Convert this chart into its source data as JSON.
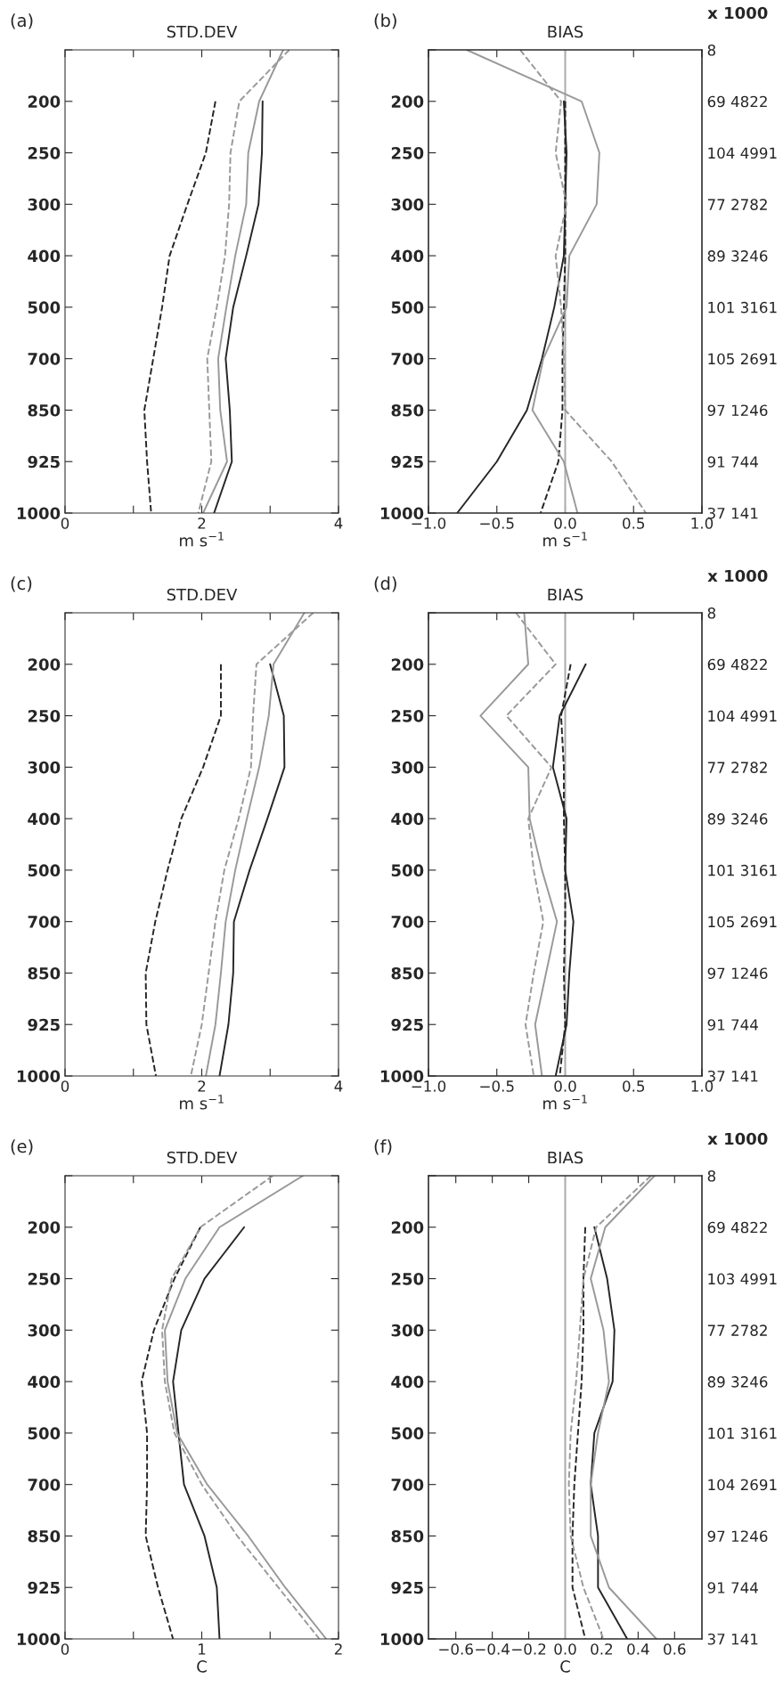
{
  "chart_data": [
    {
      "type": "line",
      "orientation": "horizontal",
      "title": "STD.DEV",
      "xlabel": "m s$^{−1}$",
      "annotations": [
        "(a)"
      ],
      "categories": [
        null,
        "200",
        "250",
        "300",
        "400",
        "500",
        "700",
        "850",
        "925",
        "1000"
      ],
      "xlim": [
        0,
        4
      ],
      "xticks": [
        0,
        {
          "value": 1,
          "label": null
        },
        2,
        {
          "value": 3,
          "label": null
        },
        4
      ],
      "grid": false,
      "series": [
        {
          "color": "#262626",
          "line_style": "solid",
          "values": [
            null,
            2.89,
            2.88,
            2.83,
            2.65,
            2.46,
            2.35,
            2.41,
            2.44,
            2.18
          ]
        },
        {
          "color": "#262626",
          "line_style": "dashed",
          "values": [
            null,
            2.2,
            2.06,
            1.79,
            1.53,
            1.42,
            1.29,
            1.16,
            1.2,
            1.26
          ]
        },
        {
          "color": "#999999",
          "line_style": "solid",
          "values": [
            3.19,
            2.84,
            2.68,
            2.65,
            2.49,
            2.36,
            2.24,
            2.27,
            2.37,
            2.02
          ]
        },
        {
          "color": "#999999",
          "line_style": "dashed",
          "values": [
            3.28,
            2.55,
            2.42,
            2.4,
            2.34,
            2.22,
            2.08,
            2.11,
            2.14,
            1.95
          ]
        }
      ]
    },
    {
      "type": "line",
      "orientation": "horizontal",
      "title": "BIAS",
      "xlabel": "m s$^{−1}$",
      "annotations": [
        "(b)",
        "x 1000"
      ],
      "categories": [
        null,
        "200",
        "250",
        "300",
        "400",
        "500",
        "700",
        "850",
        "925",
        "1000"
      ],
      "y2_categories": [
        "8",
        "69 4822",
        "104 4991",
        "77 2782",
        "89 3246",
        "101 3161",
        "105 2691",
        "97 1246",
        "91 744",
        "37 141"
      ],
      "xlim": [
        -1,
        1
      ],
      "xticks": [
        {
          "value": -1,
          "label": "−1.0"
        },
        {
          "value": -0.5,
          "label": "−0.5"
        },
        {
          "value": 0,
          "label": "0.0"
        },
        {
          "value": 0.5,
          "label": "0.5"
        },
        {
          "value": 1,
          "label": "1.0"
        }
      ],
      "grid": false,
      "ref_lines": [
        {
          "axis": "x",
          "value": 0,
          "color": "#aaaaaa"
        }
      ],
      "series": [
        {
          "color": "#262626",
          "line_style": "solid",
          "values": [
            null,
            -0.01,
            0.01,
            0,
            -0.01,
            -0.08,
            -0.17,
            -0.28,
            -0.5,
            -0.79
          ]
        },
        {
          "color": "#262626",
          "line_style": "dashed",
          "values": [
            null,
            0,
            0,
            0,
            0,
            -0.01,
            -0.02,
            -0.02,
            -0.05,
            -0.18
          ]
        },
        {
          "color": "#999999",
          "line_style": "solid",
          "values": [
            -0.72,
            0.12,
            0.25,
            0.23,
            0.03,
            0.01,
            -0.16,
            -0.24,
            -0.01,
            0.09
          ]
        },
        {
          "color": "#999999",
          "line_style": "dashed",
          "values": [
            -0.33,
            -0.03,
            -0.07,
            0.01,
            -0.07,
            -0.03,
            -0.01,
            0,
            0.34,
            0.59
          ]
        }
      ]
    },
    {
      "type": "line",
      "orientation": "horizontal",
      "title": "STD.DEV",
      "xlabel": "m s$^{−1}$",
      "annotations": [
        "(c)"
      ],
      "categories": [
        null,
        "200",
        "250",
        "300",
        "400",
        "500",
        "700",
        "850",
        "925",
        "1000"
      ],
      "xlim": [
        0,
        4
      ],
      "xticks": [
        0,
        {
          "value": 1,
          "label": null
        },
        2,
        {
          "value": 3,
          "label": null
        },
        4
      ],
      "grid": false,
      "series": [
        {
          "color": "#262626",
          "line_style": "solid",
          "values": [
            null,
            3.0,
            3.2,
            3.21,
            2.96,
            2.7,
            2.47,
            2.46,
            2.39,
            2.26
          ]
        },
        {
          "color": "#262626",
          "line_style": "dashed",
          "values": [
            null,
            2.28,
            2.28,
            2.02,
            1.7,
            1.5,
            1.32,
            1.18,
            1.19,
            1.33
          ]
        },
        {
          "color": "#999999",
          "line_style": "solid",
          "values": [
            3.5,
            3.05,
            2.98,
            2.84,
            2.66,
            2.49,
            2.35,
            2.28,
            2.2,
            2.06
          ]
        },
        {
          "color": "#999999",
          "line_style": "dashed",
          "values": [
            3.63,
            2.8,
            2.75,
            2.72,
            2.54,
            2.33,
            2.2,
            2.1,
            2.0,
            1.84
          ]
        }
      ]
    },
    {
      "type": "line",
      "orientation": "horizontal",
      "title": "BIAS",
      "xlabel": "m s$^{−1}$",
      "annotations": [
        "(d)",
        "x 1000"
      ],
      "categories": [
        null,
        "200",
        "250",
        "300",
        "400",
        "500",
        "700",
        "850",
        "925",
        "1000"
      ],
      "y2_categories": [
        "8",
        "69 4822",
        "104 4991",
        "77 2782",
        "89 3246",
        "101 3161",
        "105 2691",
        "97 1246",
        "91 744",
        "37 141"
      ],
      "xlim": [
        -1,
        1
      ],
      "xticks": [
        {
          "value": -1,
          "label": "−1.0"
        },
        {
          "value": -0.5,
          "label": "−0.5"
        },
        {
          "value": 0,
          "label": "0.0"
        },
        {
          "value": 0.5,
          "label": "0.5"
        },
        {
          "value": 1,
          "label": "1.0"
        }
      ],
      "grid": false,
      "ref_lines": [
        {
          "axis": "x",
          "value": 0,
          "color": "#aaaaaa"
        }
      ],
      "series": [
        {
          "color": "#262626",
          "line_style": "solid",
          "values": [
            null,
            0.15,
            -0.04,
            -0.09,
            0.01,
            0,
            0.06,
            0.03,
            0.01,
            -0.07
          ]
        },
        {
          "color": "#262626",
          "line_style": "dashed",
          "values": [
            null,
            0.04,
            -0.03,
            -0.01,
            -0.01,
            0,
            0,
            -0.01,
            0,
            -0.04
          ]
        },
        {
          "color": "#999999",
          "line_style": "solid",
          "values": [
            -0.3,
            -0.27,
            -0.62,
            -0.27,
            -0.26,
            -0.17,
            -0.06,
            -0.14,
            -0.22,
            -0.17
          ]
        },
        {
          "color": "#999999",
          "line_style": "dashed",
          "values": [
            -0.36,
            -0.07,
            -0.43,
            -0.1,
            -0.27,
            -0.23,
            -0.16,
            -0.23,
            -0.29,
            -0.23
          ]
        }
      ]
    },
    {
      "type": "line",
      "orientation": "horizontal",
      "title": "STD.DEV",
      "xlabel": "C",
      "annotations": [
        "(e)"
      ],
      "categories": [
        null,
        "200",
        "250",
        "300",
        "400",
        "500",
        "700",
        "850",
        "925",
        "1000"
      ],
      "xlim": [
        0,
        2
      ],
      "xticks": [
        0,
        {
          "value": 0.5,
          "label": null
        },
        1,
        {
          "value": 1.5,
          "label": null
        },
        2
      ],
      "grid": false,
      "series": [
        {
          "color": "#262626",
          "line_style": "solid",
          "values": [
            null,
            1.31,
            1.02,
            0.85,
            0.79,
            0.83,
            0.87,
            1.02,
            1.11,
            1.13
          ]
        },
        {
          "color": "#262626",
          "line_style": "dashed",
          "values": [
            null,
            0.99,
            0.8,
            0.65,
            0.56,
            0.6,
            0.6,
            0.59,
            0.68,
            0.79
          ]
        },
        {
          "color": "#999999",
          "line_style": "solid",
          "values": [
            1.74,
            1.13,
            0.88,
            0.73,
            0.75,
            0.82,
            1.04,
            1.34,
            1.61,
            1.91
          ]
        },
        {
          "color": "#999999",
          "line_style": "dashed",
          "values": [
            1.52,
            0.99,
            0.78,
            0.71,
            0.73,
            0.8,
            1.0,
            1.26,
            1.56,
            1.86
          ]
        }
      ]
    },
    {
      "type": "line",
      "orientation": "horizontal",
      "title": "BIAS",
      "xlabel": "C",
      "annotations": [
        "(f)",
        "x 1000"
      ],
      "categories": [
        null,
        "200",
        "250",
        "300",
        "400",
        "500",
        "700",
        "850",
        "925",
        "1000"
      ],
      "y2_categories": [
        "8",
        "69 4822",
        "103 4991",
        "77 2782",
        "89 3246",
        "101 3161",
        "104 2691",
        "97 1246",
        "91 744",
        "37 141"
      ],
      "xlim": [
        -0.75,
        0.75
      ],
      "xticks": [
        {
          "value": -0.6,
          "label": "−0.6"
        },
        {
          "value": -0.4,
          "label": "−0.4"
        },
        {
          "value": -0.2,
          "label": "−0.2"
        },
        {
          "value": 0,
          "label": "0.0"
        },
        {
          "value": 0.2,
          "label": "0.2"
        },
        {
          "value": 0.4,
          "label": "0.4"
        },
        {
          "value": 0.6,
          "label": "0.6"
        }
      ],
      "grid": false,
      "ref_lines": [
        {
          "axis": "x",
          "value": 0,
          "color": "#aaaaaa"
        }
      ],
      "series": [
        {
          "color": "#262626",
          "line_style": "solid",
          "values": [
            null,
            0.16,
            0.23,
            0.27,
            0.26,
            0.16,
            0.14,
            0.18,
            0.18,
            0.34
          ]
        },
        {
          "color": "#262626",
          "line_style": "dashed",
          "values": [
            null,
            0.11,
            0.1,
            0.1,
            0.09,
            0.07,
            0.05,
            0.04,
            0.04,
            0.11
          ]
        },
        {
          "color": "#999999",
          "line_style": "solid",
          "values": [
            0.49,
            0.22,
            0.14,
            0.21,
            0.24,
            0.18,
            0.14,
            0.14,
            0.24,
            0.5
          ]
        },
        {
          "color": "#999999",
          "line_style": "dashed",
          "values": [
            0.47,
            0.17,
            0.1,
            0.08,
            0.06,
            0.03,
            0.02,
            0.03,
            0.1,
            0.21
          ]
        }
      ]
    }
  ]
}
